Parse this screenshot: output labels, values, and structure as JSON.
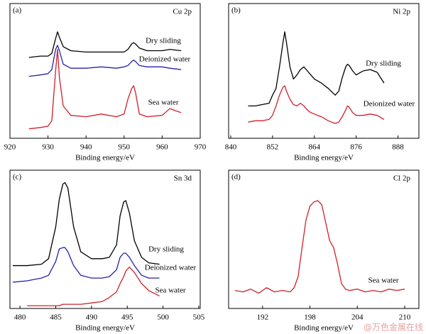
{
  "chart_data": [
    {
      "type": "line",
      "panel_label": "(a)",
      "title": "Cu 2p",
      "x_label": "Binding energy/eV",
      "x": [
        925,
        928,
        930,
        931,
        932,
        932.5,
        933,
        934,
        936,
        940,
        944,
        948,
        950,
        951,
        952,
        952.5,
        953,
        954,
        956,
        960,
        962,
        965
      ],
      "xlim": [
        920,
        970
      ],
      "xticks": [
        920,
        930,
        940,
        950,
        960,
        970
      ],
      "ylim": [
        0,
        100
      ],
      "series": [
        {
          "name": "Dry sliding",
          "color": "#000000",
          "values": [
            60,
            61,
            61,
            63,
            74,
            79,
            75,
            68,
            65,
            64,
            64,
            64,
            64,
            66,
            70,
            71,
            70,
            67,
            65,
            65,
            66,
            65
          ]
        },
        {
          "name": "Deionized water",
          "color": "#2323a8",
          "values": [
            46,
            47,
            48,
            51,
            66,
            69,
            65,
            55,
            52,
            52,
            53,
            52,
            53,
            54,
            57,
            58,
            57,
            54,
            53,
            53,
            52,
            51
          ]
        },
        {
          "name": "Sea water",
          "color": "#d0202a",
          "values": [
            7,
            8,
            9,
            13,
            50,
            66,
            45,
            24,
            17,
            16,
            18,
            16,
            18,
            29,
            37,
            39,
            34,
            18,
            16,
            17,
            22,
            19
          ]
        }
      ]
    },
    {
      "type": "line",
      "panel_label": "(b)",
      "title": "Ni 2p",
      "x_label": "Binding energy/eV",
      "x": [
        845,
        847,
        849,
        851,
        852,
        853,
        854,
        855,
        855.5,
        856,
        857,
        858,
        859,
        860,
        861,
        862,
        863,
        864,
        866,
        868,
        870,
        871,
        872,
        873,
        873.5,
        874,
        875,
        876,
        878,
        880,
        882,
        884
      ],
      "xlim": [
        839.4,
        894
      ],
      "xticks": [
        840,
        852,
        864,
        876,
        888
      ],
      "ylim": [
        0,
        100
      ],
      "series": [
        {
          "name": "Dry sliding",
          "color": "#000000",
          "values": [
            24,
            24,
            25,
            26,
            32,
            37,
            53,
            71,
            79,
            71,
            53,
            44,
            47,
            51,
            53,
            50,
            47,
            44,
            41,
            37,
            32,
            35,
            45,
            53,
            55,
            54,
            50,
            47,
            50,
            51,
            49,
            41
          ]
        },
        {
          "name": "Deionized water",
          "color": "#d0202a",
          "values": [
            12,
            13,
            13,
            14,
            17,
            24,
            32,
            38,
            39,
            35,
            29,
            25,
            24,
            26,
            24,
            21,
            19,
            18,
            16,
            13,
            11,
            12,
            16,
            21,
            24,
            23,
            19,
            17,
            17,
            18,
            17,
            14
          ]
        }
      ]
    },
    {
      "type": "line",
      "panel_label": "(c)",
      "title": "Sn 3d",
      "x_label": "Binding energy/eV",
      "x": [
        479,
        481,
        483,
        484,
        485,
        485.5,
        486,
        486.3,
        486.7,
        487.5,
        488.5,
        490,
        491.5,
        492.5,
        493.5,
        494,
        494.5,
        494.8,
        495.3,
        496,
        497,
        498,
        499.5
      ],
      "xlim": [
        478.6,
        505.2
      ],
      "xticks": [
        480,
        485,
        490,
        495,
        500,
        505
      ],
      "ylim": [
        0,
        100
      ],
      "series": [
        {
          "name": "Dry sliding",
          "color": "#000000",
          "values": [
            31,
            31,
            32,
            36,
            59,
            79,
            90,
            91,
            87,
            59,
            41,
            36,
            36,
            37,
            46,
            67,
            77,
            78,
            69,
            49,
            37,
            33,
            32
          ]
        },
        {
          "name": "Deionized water",
          "color": "#2323a8",
          "values": [
            19,
            20,
            22,
            24,
            34,
            43,
            44,
            44,
            41,
            31,
            24,
            22,
            22,
            23,
            28,
            37,
            40,
            40,
            37,
            31,
            24,
            22,
            22
          ]
        },
        {
          "name": "Sea water",
          "color": "#d0202a",
          "values": [
            null,
            2,
            2,
            2,
            2,
            2,
            3,
            3,
            3,
            3,
            3,
            4,
            5,
            8,
            12,
            18,
            23,
            27,
            30,
            26,
            18,
            13,
            9
          ]
        }
      ]
    },
    {
      "type": "line",
      "panel_label": "(d)",
      "title": "Cl 2p",
      "x_label": "Binding energy/eV",
      "x": [
        188.5,
        189.5,
        190.5,
        191.5,
        192.5,
        193.5,
        194.5,
        195.5,
        196,
        196.5,
        197,
        197.5,
        198,
        198.5,
        199,
        199.5,
        200,
        200.5,
        201,
        201.5,
        202,
        202.5,
        203,
        204,
        205,
        206,
        207,
        208,
        209,
        210
      ],
      "xlim": [
        187.7,
        211.8
      ],
      "xticks": [
        192,
        198,
        204,
        210
      ],
      "ylim": [
        0,
        100
      ],
      "series": [
        {
          "name": "Sea water",
          "color": "#d0202a",
          "values": [
            13,
            12,
            14,
            11,
            15,
            12,
            13,
            12,
            15,
            23,
            44,
            64,
            74,
            77,
            78,
            75,
            62,
            49,
            44,
            32,
            18,
            14,
            13,
            14,
            12,
            13,
            12,
            14,
            13,
            14
          ]
        }
      ]
    }
  ],
  "watermark": "@万色金属在线"
}
